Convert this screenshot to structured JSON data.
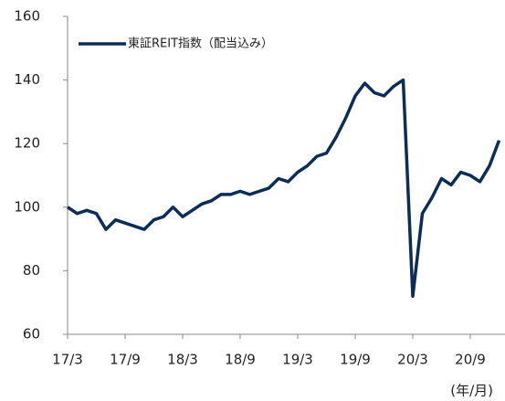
{
  "chart_data": {
    "type": "line",
    "legend_position": "upper left",
    "xlabel": "(年/月)",
    "categories": [
      "17/3",
      null,
      null,
      null,
      null,
      null,
      "17/9",
      null,
      null,
      null,
      null,
      null,
      "18/3",
      null,
      null,
      null,
      null,
      null,
      "18/9",
      null,
      null,
      null,
      null,
      null,
      "19/3",
      null,
      null,
      null,
      null,
      null,
      "19/9",
      null,
      null,
      null,
      null,
      null,
      "20/3",
      null,
      null,
      null,
      null,
      null,
      "20/9",
      null,
      null,
      null
    ],
    "series": [
      {
        "name": "東証REIT指数（配当込み）",
        "color": "#0b2d57",
        "values": [
          100,
          98,
          99,
          98,
          93,
          96,
          95,
          94,
          93,
          96,
          97,
          100,
          97,
          99,
          101,
          102,
          104,
          104,
          105,
          104,
          105,
          106,
          109,
          108,
          111,
          113,
          116,
          117,
          122,
          128,
          135,
          139,
          136,
          135,
          138,
          140,
          72,
          98,
          103,
          109,
          107,
          111,
          110,
          108,
          113,
          121
        ]
      }
    ],
    "ylim": [
      60,
      160
    ],
    "yticks": [
      60,
      80,
      100,
      120,
      140,
      160
    ],
    "grid": false
  }
}
